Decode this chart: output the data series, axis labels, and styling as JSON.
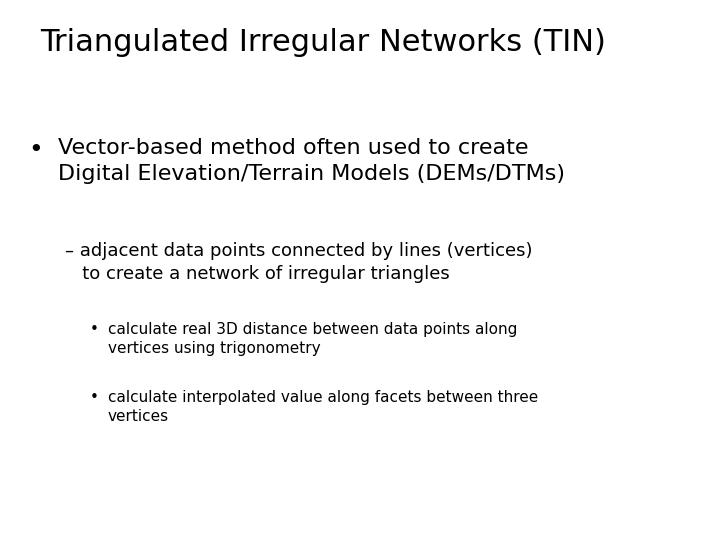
{
  "title": "Triangulated Irregular Networks (TIN)",
  "background_color": "#ffffff",
  "text_color": "#000000",
  "title_fontsize": 22,
  "bullet1_text": "Vector-based method often used to create\nDigital Elevation/Terrain Models (DEMs/DTMs)",
  "bullet1_fontsize": 16,
  "sub1_text": "– adjacent data points connected by lines (vertices)\n   to create a network of irregular triangles",
  "sub1_fontsize": 13,
  "sub2_text": "calculate real 3D distance between data points along\nvertices using trigonometry",
  "sub2_fontsize": 11,
  "sub3_text": "calculate interpolated value along facets between three\nvertices",
  "sub3_fontsize": 11,
  "font_family": "DejaVu Sans"
}
